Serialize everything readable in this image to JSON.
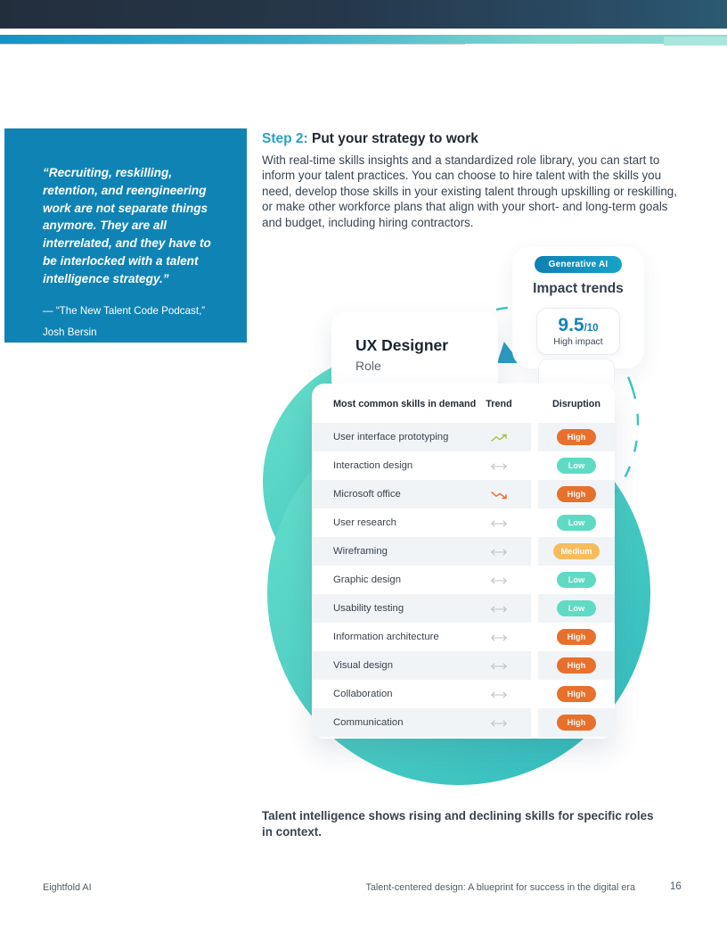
{
  "header": {
    "bar_color": "#253749",
    "accent_color": "#3FB0CB"
  },
  "quote": {
    "text": "“Recruiting, reskilling, retention, and reengineering work are not separate things anymore. They are all interrelated, and they have to be interlocked with a talent intelligence strategy.”",
    "attribution": "— “The New Talent Code Podcast,”",
    "author": "Josh Bersin",
    "bg_color": "#1083B5"
  },
  "step": {
    "label": "Step 2:",
    "title": " Put your strategy to work",
    "body": "With real-time skills insights and a standardized role library, you can start to inform your talent practices. You can choose to hire talent with the skills you need, develop those skills in your existing talent through upskilling or reskilling, or make other workforce plans that align with your short- and long-term goals and budget, including hiring contractors.",
    "accent_color": "#2AA2C8"
  },
  "illustration": {
    "badge": "Generative AI",
    "impact_title": "Impact trends",
    "score": "9.5",
    "score_denominator": "/10",
    "score_label": "High impact",
    "role_card": {
      "title": "UX Designer",
      "subtitle": "Role"
    },
    "table": {
      "headers": [
        "Most common skills in demand",
        "Trend",
        "Disruption"
      ],
      "rows": [
        {
          "skill": "User interface prototyping",
          "trend": "up",
          "disruption": "High"
        },
        {
          "skill": "Interaction design",
          "trend": "flat",
          "disruption": "Low"
        },
        {
          "skill": "Microsoft office",
          "trend": "down",
          "disruption": "High"
        },
        {
          "skill": "User research",
          "trend": "flat",
          "disruption": "Low"
        },
        {
          "skill": "Wireframing",
          "trend": "flat",
          "disruption": "Medium"
        },
        {
          "skill": "Graphic design",
          "trend": "flat",
          "disruption": "Low"
        },
        {
          "skill": "Usability testing",
          "trend": "flat",
          "disruption": "Low"
        },
        {
          "skill": "Information architecture",
          "trend": "flat",
          "disruption": "High"
        },
        {
          "skill": "Visual design",
          "trend": "flat",
          "disruption": "High"
        },
        {
          "skill": "Collaboration",
          "trend": "flat",
          "disruption": "High"
        },
        {
          "skill": "Communication",
          "trend": "flat",
          "disruption": "High"
        }
      ]
    },
    "badge_colors": {
      "High": "#E8702D",
      "Medium": "#F7BC5D",
      "Low": "#5FDBC4"
    },
    "trend_colors": {
      "up": "#A6C24C",
      "down": "#E8702D",
      "flat": "#BBC2C8"
    },
    "blob_colors": {
      "start": "#69E0CA",
      "end": "#30BABE"
    },
    "dashed_circle_color": "#3EC4C4"
  },
  "caption": "Talent intelligence shows rising and declining skills for specific roles in context.",
  "footer": {
    "left": "Eightfold AI",
    "center": "Talent-centered design: A blueprint for success in the digital era",
    "page_number": "16"
  }
}
